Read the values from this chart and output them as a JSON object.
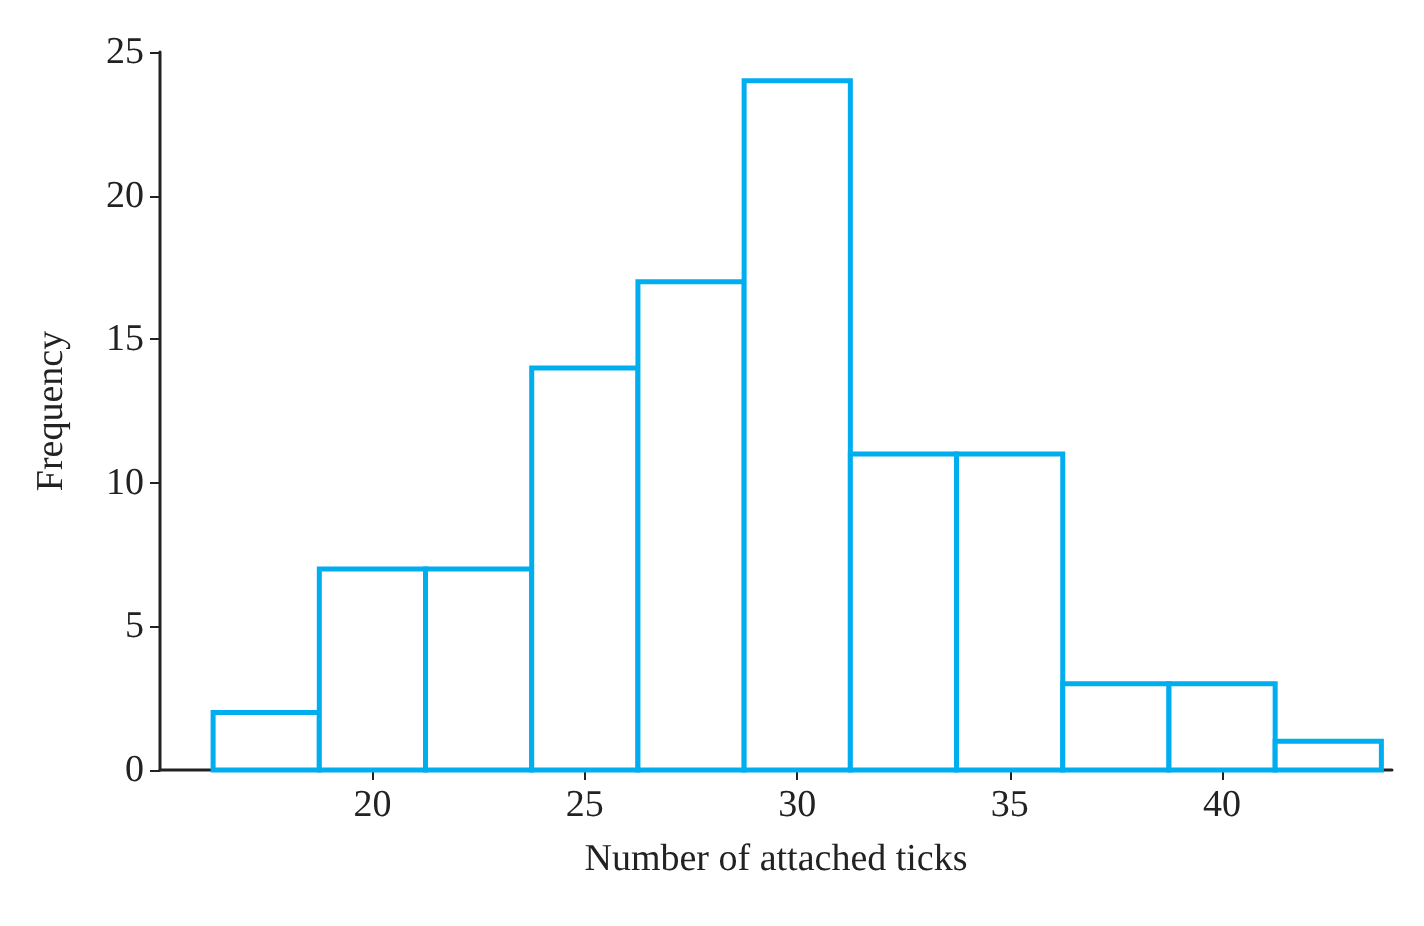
{
  "chart_data": {
    "type": "histogram",
    "xlabel": "Number of attached ticks",
    "ylabel": "Frequency",
    "bins": [
      16.25,
      18.75,
      21.25,
      23.75,
      26.25,
      28.75,
      31.25,
      33.75,
      36.25,
      38.75,
      41.25,
      43.75
    ],
    "values": [
      2,
      7,
      7,
      14,
      17,
      24,
      11,
      11,
      3,
      3,
      1
    ],
    "color": "#00aeef",
    "xlim": [
      15,
      44
    ],
    "xticks": [
      20,
      25,
      30,
      35,
      40
    ],
    "ylim": [
      0,
      25
    ],
    "yticks": [
      0,
      5,
      10,
      15,
      20,
      25
    ],
    "grid": false
  }
}
